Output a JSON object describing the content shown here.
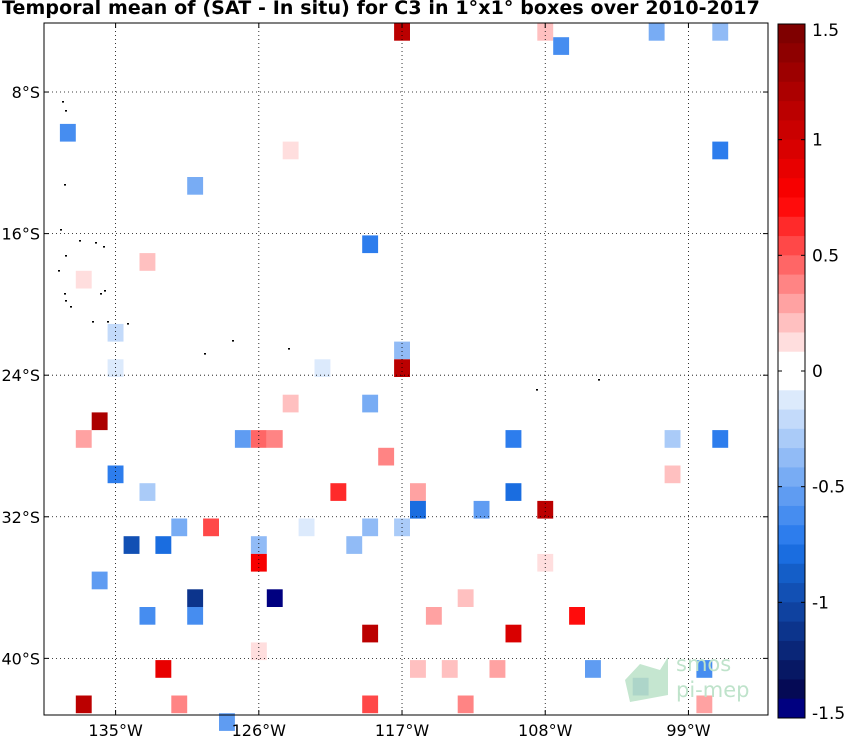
{
  "chart_data": {
    "type": "heatmap",
    "title": "Temporal mean of (SAT - In situ) for C3 in 1°x1° boxes over 2010-2017",
    "xlabel": "",
    "ylabel": "",
    "xlim": [
      -139.5,
      -94.0
    ],
    "ylim": [
      -43.2,
      -4.1
    ],
    "x_ticks": [
      -135,
      -126,
      -117,
      -108,
      -99
    ],
    "x_tick_labels": [
      "135°W",
      "126°W",
      "117°W",
      "108°W",
      "99°W"
    ],
    "y_ticks": [
      -8,
      -16,
      -24,
      -32,
      -40
    ],
    "y_tick_labels": [
      "8°S",
      "16°S",
      "24°S",
      "32°S",
      "40°S"
    ],
    "grid": true,
    "colorbar": {
      "min": -1.5,
      "max": 1.5,
      "ticks": [
        1.5,
        1,
        0.5,
        0,
        -0.5,
        -1,
        -1.5
      ],
      "tick_labels": [
        "1.5",
        "1",
        "0.5",
        "0",
        "-0.5",
        "-1",
        "-1.5"
      ],
      "levels": [
        "#7f0000",
        "#8e0000",
        "#9d0000",
        "#ac0000",
        "#bb0000",
        "#ca0000",
        "#d90000",
        "#e80000",
        "#f70000",
        "#ff0c0c",
        "#ff2a2a",
        "#ff4848",
        "#ff6666",
        "#ff8484",
        "#ffa2a2",
        "#ffc0c0",
        "#ffdede",
        "#ffffff",
        "#ffffff",
        "#dceafc",
        "#c3dafa",
        "#aacbf8",
        "#91bbf6",
        "#78acf4",
        "#5f9cf2",
        "#468df0",
        "#2d7ded",
        "#1a6de0",
        "#145ec8",
        "#1250b4",
        "#0f42a0",
        "#0c348c",
        "#0a2678",
        "#071864",
        "#050a55",
        "#000080"
      ]
    },
    "cells": [
      {
        "lon": -117,
        "lat": -4.6,
        "value": 1.1
      },
      {
        "lon": -108,
        "lat": -4.6,
        "value": 0.2
      },
      {
        "lon": -107,
        "lat": -5.4,
        "value": -0.6
      },
      {
        "lon": -101,
        "lat": -4.6,
        "value": -0.45
      },
      {
        "lon": -97,
        "lat": -4.6,
        "value": -0.35
      },
      {
        "lon": -138,
        "lat": -10.3,
        "value": -0.65
      },
      {
        "lon": -97,
        "lat": -11.3,
        "value": -0.7
      },
      {
        "lon": -124,
        "lat": -11.3,
        "value": 0.15
      },
      {
        "lon": -130,
        "lat": -13.3,
        "value": -0.45
      },
      {
        "lon": -119,
        "lat": -16.6,
        "value": -0.7
      },
      {
        "lon": -133,
        "lat": -17.6,
        "value": 0.2
      },
      {
        "lon": -137,
        "lat": -18.6,
        "value": 0.15
      },
      {
        "lon": -135,
        "lat": -21.6,
        "value": -0.2
      },
      {
        "lon": -135,
        "lat": -23.6,
        "value": -0.15
      },
      {
        "lon": -117,
        "lat": -22.6,
        "value": -0.35
      },
      {
        "lon": -117,
        "lat": -23.6,
        "value": 1.1
      },
      {
        "lon": -122,
        "lat": -23.6,
        "value": -0.15
      },
      {
        "lon": -124,
        "lat": -25.6,
        "value": 0.2
      },
      {
        "lon": -119,
        "lat": -25.6,
        "value": -0.45
      },
      {
        "lon": -136,
        "lat": -26.6,
        "value": 1.2
      },
      {
        "lon": -137,
        "lat": -27.6,
        "value": 0.3
      },
      {
        "lon": -127,
        "lat": -27.6,
        "value": -0.55
      },
      {
        "lon": -126,
        "lat": -27.6,
        "value": 0.45
      },
      {
        "lon": -125,
        "lat": -27.6,
        "value": 0.4
      },
      {
        "lon": -118,
        "lat": -28.6,
        "value": 0.35
      },
      {
        "lon": -110,
        "lat": -27.6,
        "value": -0.7
      },
      {
        "lon": -100,
        "lat": -27.6,
        "value": -0.3
      },
      {
        "lon": -97,
        "lat": -27.6,
        "value": -0.7
      },
      {
        "lon": -135,
        "lat": -29.6,
        "value": -0.7
      },
      {
        "lon": -133,
        "lat": -30.6,
        "value": -0.3
      },
      {
        "lon": -121,
        "lat": -30.6,
        "value": 0.65
      },
      {
        "lon": -116,
        "lat": -30.6,
        "value": 0.3
      },
      {
        "lon": -110,
        "lat": -30.6,
        "value": -0.75
      },
      {
        "lon": -100,
        "lat": -29.6,
        "value": 0.2
      },
      {
        "lon": -116,
        "lat": -31.6,
        "value": -0.75
      },
      {
        "lon": -112,
        "lat": -31.6,
        "value": -0.55
      },
      {
        "lon": -108,
        "lat": -31.6,
        "value": 1.1
      },
      {
        "lon": -131,
        "lat": -32.6,
        "value": -0.45
      },
      {
        "lon": -129,
        "lat": -32.6,
        "value": 0.55
      },
      {
        "lon": -123,
        "lat": -32.6,
        "value": -0.15
      },
      {
        "lon": -119,
        "lat": -32.6,
        "value": -0.4
      },
      {
        "lon": -117,
        "lat": -32.6,
        "value": -0.3
      },
      {
        "lon": -134,
        "lat": -33.6,
        "value": -0.95
      },
      {
        "lon": -132,
        "lat": -33.6,
        "value": -0.75
      },
      {
        "lon": -126,
        "lat": -33.6,
        "value": -0.35
      },
      {
        "lon": -120,
        "lat": -33.6,
        "value": -0.4
      },
      {
        "lon": -126,
        "lat": -34.6,
        "value": 0.8
      },
      {
        "lon": -108,
        "lat": -34.6,
        "value": 0.15
      },
      {
        "lon": -136,
        "lat": -35.6,
        "value": -0.55
      },
      {
        "lon": -130,
        "lat": -36.6,
        "value": -1.15
      },
      {
        "lon": -125,
        "lat": -36.6,
        "value": -1.45
      },
      {
        "lon": -113,
        "lat": -36.6,
        "value": 0.2
      },
      {
        "lon": -133,
        "lat": -37.6,
        "value": -0.6
      },
      {
        "lon": -130,
        "lat": -37.6,
        "value": -0.6
      },
      {
        "lon": -115,
        "lat": -37.6,
        "value": 0.3
      },
      {
        "lon": -106,
        "lat": -37.6,
        "value": 0.7
      },
      {
        "lon": -119,
        "lat": -38.6,
        "value": 1.1
      },
      {
        "lon": -110,
        "lat": -38.6,
        "value": 1.0
      },
      {
        "lon": -126,
        "lat": -39.6,
        "value": 0.15
      },
      {
        "lon": -132,
        "lat": -40.6,
        "value": 0.9
      },
      {
        "lon": -116,
        "lat": -40.6,
        "value": 0.2
      },
      {
        "lon": -114,
        "lat": -40.6,
        "value": 0.2
      },
      {
        "lon": -111,
        "lat": -40.6,
        "value": 0.3
      },
      {
        "lon": -105,
        "lat": -40.6,
        "value": -0.55
      },
      {
        "lon": -98,
        "lat": -40.6,
        "value": -0.65
      },
      {
        "lon": -102,
        "lat": -41.6,
        "value": -0.95
      },
      {
        "lon": -137,
        "lat": -42.6,
        "value": 1.1
      },
      {
        "lon": -131,
        "lat": -42.6,
        "value": 0.4
      },
      {
        "lon": -119,
        "lat": -42.6,
        "value": 0.55
      },
      {
        "lon": -113,
        "lat": -42.6,
        "value": 0.35
      },
      {
        "lon": -98,
        "lat": -42.6,
        "value": 0.3
      },
      {
        "lon": -128,
        "lat": -43.6,
        "value": -0.55
      }
    ]
  },
  "logo": {
    "line1": "smos",
    "line2": "pi-mep",
    "color": "#bfe3cb"
  }
}
